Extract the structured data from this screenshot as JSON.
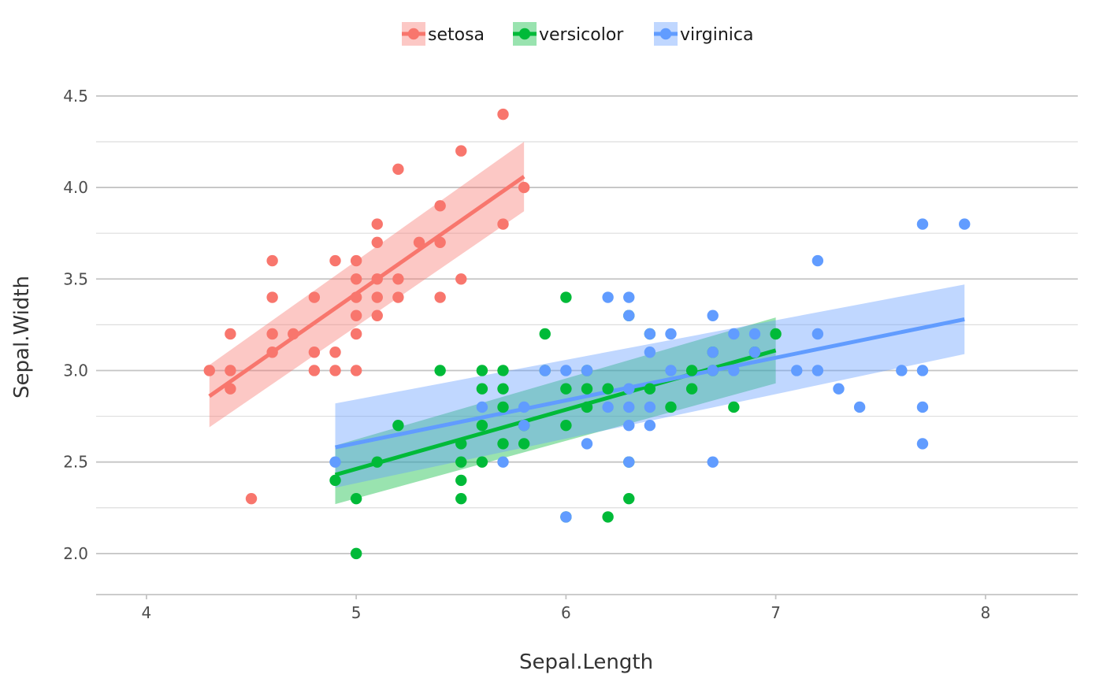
{
  "chart_data": {
    "type": "scatter",
    "title": "",
    "xlabel": "Sepal.Length",
    "ylabel": "Sepal.Width",
    "xlim": [
      3.76,
      8.44
    ],
    "ylim": [
      1.78,
      4.62
    ],
    "x_ticks": [
      {
        "value": 4,
        "label": "4"
      },
      {
        "value": 5,
        "label": "5"
      },
      {
        "value": 6,
        "label": "6"
      },
      {
        "value": 7,
        "label": "7"
      },
      {
        "value": 8,
        "label": "8"
      }
    ],
    "y_ticks": [
      {
        "value": 2.0,
        "label": "2.0"
      },
      {
        "value": 2.5,
        "label": "2.5"
      },
      {
        "value": 3.0,
        "label": "3.0"
      },
      {
        "value": 3.5,
        "label": "3.5"
      },
      {
        "value": 4.0,
        "label": "4.0"
      },
      {
        "value": 4.5,
        "label": "4.5"
      }
    ],
    "y_minor_ticks": [
      1.75,
      2.25,
      2.75,
      3.25,
      3.75,
      4.25,
      4.75
    ],
    "grid": true,
    "legend_position": "top",
    "series": [
      {
        "name": "setosa",
        "color": "#F8766D",
        "fit": {
          "x_range": [
            4.3,
            5.8
          ],
          "y_start": 2.86,
          "y_end": 4.06
        },
        "band": {
          "lower_start": 2.69,
          "lower_end": 3.87,
          "upper_start": 3.03,
          "upper_end": 4.25
        },
        "points": [
          [
            4.3,
            3.0
          ],
          [
            4.4,
            3.2
          ],
          [
            4.4,
            3.0
          ],
          [
            4.4,
            2.9
          ],
          [
            4.5,
            2.3
          ],
          [
            4.6,
            3.6
          ],
          [
            4.6,
            3.4
          ],
          [
            4.6,
            3.2
          ],
          [
            4.6,
            3.1
          ],
          [
            4.7,
            3.2
          ],
          [
            4.8,
            3.4
          ],
          [
            4.8,
            3.1
          ],
          [
            4.8,
            3.0
          ],
          [
            4.9,
            3.6
          ],
          [
            4.9,
            3.1
          ],
          [
            4.9,
            3.0
          ],
          [
            5.0,
            3.6
          ],
          [
            5.0,
            3.5
          ],
          [
            5.0,
            3.4
          ],
          [
            5.0,
            3.3
          ],
          [
            5.0,
            3.2
          ],
          [
            5.0,
            3.0
          ],
          [
            5.1,
            3.8
          ],
          [
            5.1,
            3.7
          ],
          [
            5.1,
            3.5
          ],
          [
            5.1,
            3.4
          ],
          [
            5.1,
            3.3
          ],
          [
            5.2,
            4.1
          ],
          [
            5.2,
            3.5
          ],
          [
            5.2,
            3.4
          ],
          [
            5.3,
            3.7
          ],
          [
            5.4,
            3.9
          ],
          [
            5.4,
            3.7
          ],
          [
            5.4,
            3.4
          ],
          [
            5.5,
            4.2
          ],
          [
            5.5,
            3.5
          ],
          [
            5.7,
            4.4
          ],
          [
            5.7,
            3.8
          ],
          [
            5.8,
            4.0
          ]
        ]
      },
      {
        "name": "versicolor",
        "color": "#00BA38",
        "fit": {
          "x_range": [
            4.9,
            7.0
          ],
          "y_start": 2.43,
          "y_end": 3.11
        },
        "band": {
          "lower_start": 2.27,
          "lower_end": 2.93,
          "upper_start": 2.59,
          "upper_end": 3.29
        },
        "points": [
          [
            4.9,
            2.4
          ],
          [
            5.0,
            2.3
          ],
          [
            5.0,
            2.0
          ],
          [
            5.1,
            2.5
          ],
          [
            5.2,
            2.7
          ],
          [
            5.4,
            3.0
          ],
          [
            5.5,
            2.6
          ],
          [
            5.5,
            2.5
          ],
          [
            5.5,
            2.4
          ],
          [
            5.5,
            2.3
          ],
          [
            5.6,
            3.0
          ],
          [
            5.6,
            2.9
          ],
          [
            5.6,
            2.7
          ],
          [
            5.6,
            2.5
          ],
          [
            5.7,
            3.0
          ],
          [
            5.7,
            2.9
          ],
          [
            5.7,
            2.8
          ],
          [
            5.7,
            2.6
          ],
          [
            5.8,
            2.7
          ],
          [
            5.8,
            2.6
          ],
          [
            5.9,
            3.2
          ],
          [
            5.9,
            3.0
          ],
          [
            6.0,
            3.4
          ],
          [
            6.0,
            2.9
          ],
          [
            6.0,
            2.7
          ],
          [
            6.0,
            2.2
          ],
          [
            6.1,
            3.0
          ],
          [
            6.1,
            2.9
          ],
          [
            6.1,
            2.8
          ],
          [
            6.2,
            2.9
          ],
          [
            6.2,
            2.2
          ],
          [
            6.3,
            3.3
          ],
          [
            6.3,
            2.5
          ],
          [
            6.3,
            2.3
          ],
          [
            6.4,
            3.2
          ],
          [
            6.4,
            2.9
          ],
          [
            6.5,
            2.8
          ],
          [
            6.6,
            3.0
          ],
          [
            6.6,
            2.9
          ],
          [
            6.7,
            3.1
          ],
          [
            6.7,
            3.0
          ],
          [
            6.8,
            2.8
          ],
          [
            6.9,
            3.1
          ],
          [
            7.0,
            3.2
          ]
        ]
      },
      {
        "name": "virginica",
        "color": "#619CFF",
        "fit": {
          "x_range": [
            4.9,
            7.9
          ],
          "y_start": 2.58,
          "y_end": 3.28
        },
        "band": {
          "lower_start": 2.36,
          "lower_end": 3.09,
          "upper_start": 2.82,
          "upper_end": 3.47
        },
        "points": [
          [
            4.9,
            2.5
          ],
          [
            5.6,
            2.8
          ],
          [
            5.7,
            2.5
          ],
          [
            5.8,
            2.8
          ],
          [
            5.8,
            2.7
          ],
          [
            5.9,
            3.0
          ],
          [
            6.0,
            3.0
          ],
          [
            6.0,
            2.2
          ],
          [
            6.1,
            3.0
          ],
          [
            6.1,
            2.6
          ],
          [
            6.2,
            3.4
          ],
          [
            6.2,
            2.8
          ],
          [
            6.3,
            3.4
          ],
          [
            6.3,
            3.3
          ],
          [
            6.3,
            2.9
          ],
          [
            6.3,
            2.8
          ],
          [
            6.3,
            2.7
          ],
          [
            6.3,
            2.5
          ],
          [
            6.4,
            3.2
          ],
          [
            6.4,
            3.1
          ],
          [
            6.4,
            2.8
          ],
          [
            6.4,
            2.7
          ],
          [
            6.5,
            3.2
          ],
          [
            6.5,
            3.0
          ],
          [
            6.7,
            3.3
          ],
          [
            6.7,
            3.1
          ],
          [
            6.7,
            3.0
          ],
          [
            6.7,
            2.5
          ],
          [
            6.8,
            3.2
          ],
          [
            6.8,
            3.0
          ],
          [
            6.9,
            3.2
          ],
          [
            6.9,
            3.1
          ],
          [
            7.1,
            3.0
          ],
          [
            7.2,
            3.6
          ],
          [
            7.2,
            3.2
          ],
          [
            7.2,
            3.0
          ],
          [
            7.3,
            2.9
          ],
          [
            7.4,
            2.8
          ],
          [
            7.6,
            3.0
          ],
          [
            7.7,
            3.8
          ],
          [
            7.7,
            3.0
          ],
          [
            7.7,
            2.8
          ],
          [
            7.7,
            2.6
          ],
          [
            7.9,
            3.8
          ]
        ]
      }
    ]
  }
}
